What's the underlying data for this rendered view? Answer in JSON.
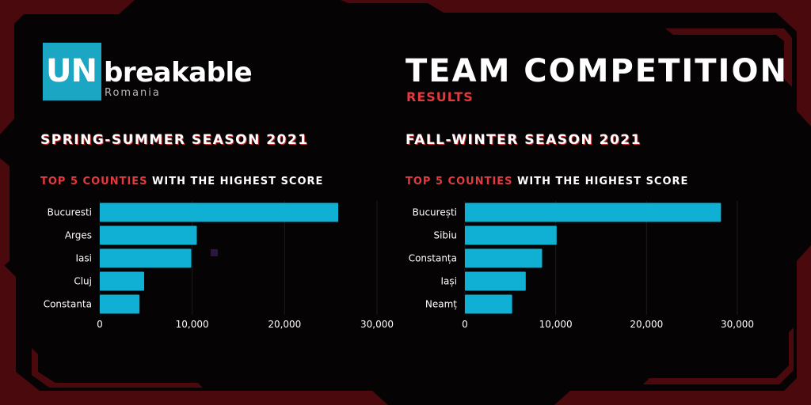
{
  "brand": {
    "logo_un": "UN",
    "logo_word": "breakable",
    "logo_country": "Romania"
  },
  "header": {
    "title": "TEAM COMPETITION",
    "subtitle": "RESULTS"
  },
  "colors": {
    "accent_red": "#e43a3f",
    "bar_blue": "#0fb0d4",
    "logo_blue": "#1ba6c4",
    "frame_red": "#4a0a0d"
  },
  "chart_data": [
    {
      "type": "bar",
      "orientation": "horizontal",
      "title": "SPRING-SUMMER SEASON 2021",
      "subtitle_highlight": "TOP 5 COUNTIES",
      "subtitle_rest": " WITH THE HIGHEST SCORE",
      "categories": [
        "Bucuresti",
        "Arges",
        "Iasi",
        "Cluj",
        "Constanta"
      ],
      "values": [
        25800,
        10500,
        9900,
        4800,
        4300
      ],
      "xlim": [
        0,
        30000
      ],
      "xticks": [
        0,
        10000,
        20000,
        30000
      ],
      "xtick_labels": [
        "0",
        "10,000",
        "20,000",
        "30,000"
      ],
      "grid": true
    },
    {
      "type": "bar",
      "orientation": "horizontal",
      "title": "FALL-WINTER SEASON 2021",
      "subtitle_highlight": "TOP 5 COUNTIES",
      "subtitle_rest": " WITH THE HIGHEST SCORE",
      "categories": [
        "București",
        "Sibiu",
        "Constanța",
        "Iași",
        "Neamț"
      ],
      "values": [
        28200,
        10100,
        8500,
        6700,
        5200
      ],
      "xlim": [
        0,
        30000
      ],
      "xticks": [
        0,
        10000,
        20000,
        30000
      ],
      "xtick_labels": [
        "0",
        "10,000",
        "20,000",
        "30,000"
      ],
      "grid": true
    }
  ]
}
